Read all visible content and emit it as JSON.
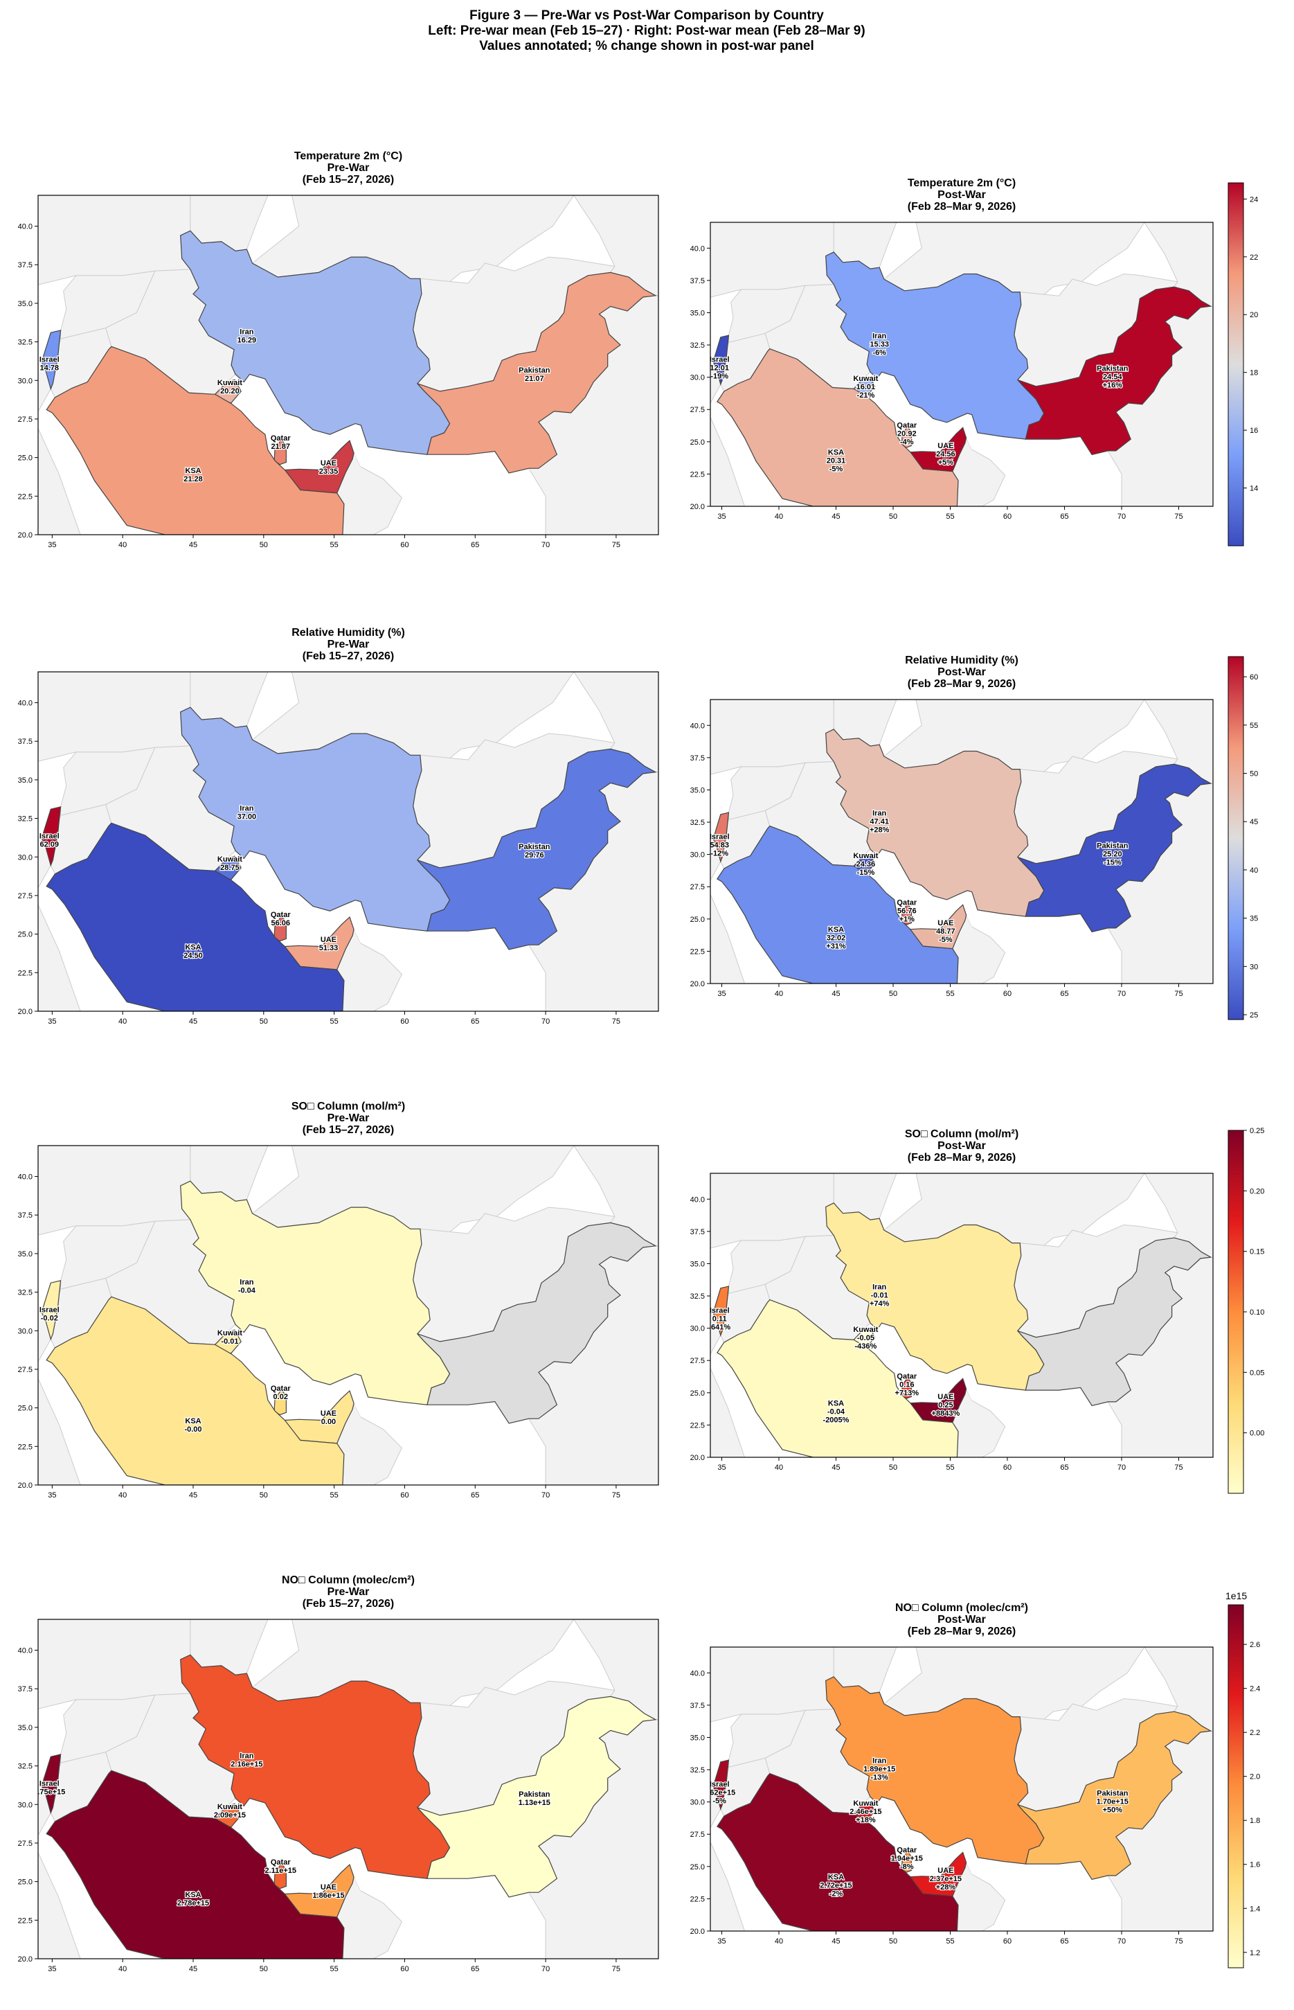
{
  "figure": {
    "title_lines": [
      "Figure 3 — Pre-War vs Post-War Comparison by Country",
      "Left: Pre-war mean (Feb 15–27)  ·  Right: Post-war mean (Feb 28–Mar 9)",
      "Values annotated; % change shown in post-war panel"
    ]
  },
  "countries": [
    "Israel",
    "Kuwait",
    "Qatar",
    "UAE",
    "KSA",
    "Iran",
    "Pakistan"
  ],
  "chart_data": [
    {
      "type": "choropleth",
      "variable": "Temperature 2m (°C)",
      "pre_title": [
        "Temperature 2m (°C)",
        "Pre-War",
        "(Feb 15–27, 2026)"
      ],
      "post_title": [
        "Temperature 2m (°C)",
        "Post-War",
        "(Feb 28–Mar 9, 2026)"
      ],
      "xlim": [
        34,
        78
      ],
      "ylim": [
        20,
        42
      ],
      "xticks": [
        35,
        40,
        45,
        50,
        55,
        60,
        65,
        70,
        75
      ],
      "yticks": [
        20.0,
        22.5,
        25.0,
        27.5,
        30.0,
        32.5,
        35.0,
        37.5,
        40.0
      ],
      "pre": {
        "Israel": "14.78",
        "Kuwait": "20.20",
        "Qatar": "21.87",
        "UAE": "23.35",
        "KSA": "21.28",
        "Iran": "16.29",
        "Pakistan": "21.07"
      },
      "post": {
        "Israel": "12.01",
        "Kuwait": "16.01",
        "Qatar": "20.92",
        "UAE": "24.56",
        "KSA": "20.31",
        "Iran": "15.33",
        "Pakistan": "24.54"
      },
      "pct": {
        "Israel": "-19%",
        "Kuwait": "-21%",
        "Qatar": "-4%",
        "UAE": "+5%",
        "KSA": "-5%",
        "Iran": "-6%",
        "Pakistan": "+16%"
      },
      "colormap": "coolwarm",
      "vmin": 12.0,
      "vmax": 24.56,
      "colorbar_ticks": [
        "14",
        "16",
        "18",
        "20",
        "22",
        "24"
      ],
      "colorbar_tick_values": [
        14,
        16,
        18,
        20,
        22,
        24
      ]
    },
    {
      "type": "choropleth",
      "variable": "Relative Humidity (%)",
      "pre_title": [
        "Relative Humidity (%)",
        "Pre-War",
        "(Feb 15–27, 2026)"
      ],
      "post_title": [
        "Relative Humidity (%)",
        "Post-War",
        "(Feb 28–Mar 9, 2026)"
      ],
      "xlim": [
        34,
        78
      ],
      "ylim": [
        20,
        42
      ],
      "xticks": [
        35,
        40,
        45,
        50,
        55,
        60,
        65,
        70,
        75
      ],
      "yticks": [
        20.0,
        22.5,
        25.0,
        27.5,
        30.0,
        32.5,
        35.0,
        37.5,
        40.0
      ],
      "pre": {
        "Israel": "62.09",
        "Kuwait": "28.75",
        "Qatar": "56.06",
        "UAE": "51.33",
        "KSA": "24.50",
        "Iran": "37.00",
        "Pakistan": "29.76"
      },
      "post": {
        "Israel": "54.83",
        "Kuwait": "24.36",
        "Qatar": "56.76",
        "UAE": "48.77",
        "KSA": "32.02",
        "Iran": "47.41",
        "Pakistan": "25.20"
      },
      "pct": {
        "Israel": "-12%",
        "Kuwait": "-15%",
        "Qatar": "+1%",
        "UAE": "-5%",
        "KSA": "+31%",
        "Iran": "+28%",
        "Pakistan": "-15%"
      },
      "colormap": "coolwarm",
      "vmin": 24.5,
      "vmax": 62.09,
      "colorbar_ticks": [
        "25",
        "30",
        "35",
        "40",
        "45",
        "50",
        "55",
        "60"
      ],
      "colorbar_tick_values": [
        25,
        30,
        35,
        40,
        45,
        50,
        55,
        60
      ]
    },
    {
      "type": "choropleth",
      "variable": "SO□ Column (mol/m²)",
      "pre_title": [
        "SO□ Column (mol/m²)",
        "Pre-War",
        "(Feb 15–27, 2026)"
      ],
      "post_title": [
        "SO□ Column (mol/m²)",
        "Post-War",
        "(Feb 28–Mar 9, 2026)"
      ],
      "xlim": [
        34,
        78
      ],
      "ylim": [
        20,
        42
      ],
      "xticks": [
        35,
        40,
        45,
        50,
        55,
        60,
        65,
        70,
        75
      ],
      "yticks": [
        20.0,
        22.5,
        25.0,
        27.5,
        30.0,
        32.5,
        35.0,
        37.5,
        40.0
      ],
      "pre": {
        "Israel": "-0.02",
        "Kuwait": "-0.01",
        "Qatar": "0.02",
        "UAE": "0.00",
        "KSA": "-0.00",
        "Iran": "-0.04"
      },
      "post": {
        "Israel": "0.11",
        "Kuwait": "-0.05",
        "Qatar": "0.16",
        "UAE": "0.25",
        "KSA": "-0.04",
        "Iran": "-0.01"
      },
      "pct": {
        "Israel": "-641%",
        "Kuwait": "-436%",
        "Qatar": "+713%",
        "UAE": "+8843%",
        "KSA": "-2005%",
        "Iran": "+74%"
      },
      "no_data": [
        "Pakistan"
      ],
      "colormap": "YlOrRd",
      "vmin": -0.05,
      "vmax": 0.25,
      "colorbar_ticks": [
        "0.00",
        "0.05",
        "0.10",
        "0.15",
        "0.20",
        "0.25"
      ],
      "colorbar_tick_values": [
        0,
        0.05,
        0.1,
        0.15,
        0.2,
        0.25
      ]
    },
    {
      "type": "choropleth",
      "variable": "NO□ Column (molec/cm²)",
      "pre_title": [
        "NO□ Column (molec/cm²)",
        "Pre-War",
        "(Feb 15–27, 2026)"
      ],
      "post_title": [
        "NO□ Column (molec/cm²)",
        "Post-War",
        "(Feb 28–Mar 9, 2026)"
      ],
      "xlim": [
        34,
        78
      ],
      "ylim": [
        20,
        42
      ],
      "xticks": [
        35,
        40,
        45,
        50,
        55,
        60,
        65,
        70,
        75
      ],
      "yticks": [
        20.0,
        22.5,
        25.0,
        27.5,
        30.0,
        32.5,
        35.0,
        37.5,
        40.0
      ],
      "pre": {
        "Israel": "2.75e+15",
        "Kuwait": "2.09e+15",
        "Qatar": "2.11e+15",
        "UAE": "1.86e+15",
        "KSA": "2.78e+15",
        "Iran": "2.16e+15",
        "Pakistan": "1.13e+15"
      },
      "post": {
        "Israel": "2.62e+15",
        "Kuwait": "2.46e+15",
        "Qatar": "1.94e+15",
        "UAE": "2.37e+15",
        "KSA": "2.72e+15",
        "Iran": "1.89e+15",
        "Pakistan": "1.70e+15"
      },
      "pct": {
        "Israel": "-5%",
        "Kuwait": "+18%",
        "Qatar": "-8%",
        "UAE": "+28%",
        "KSA": "-2%",
        "Iran": "-13%",
        "Pakistan": "+50%"
      },
      "colormap": "YlOrRd",
      "vmin": 1.13,
      "vmax": 2.78,
      "colorbar_ticks": [
        "1.2",
        "1.4",
        "1.6",
        "1.8",
        "2.0",
        "2.2",
        "2.4",
        "2.6"
      ],
      "colorbar_tick_values": [
        1.2,
        1.4,
        1.6,
        1.8,
        2.0,
        2.2,
        2.4,
        2.6
      ],
      "colorbar_offset_label": "1e15"
    }
  ]
}
